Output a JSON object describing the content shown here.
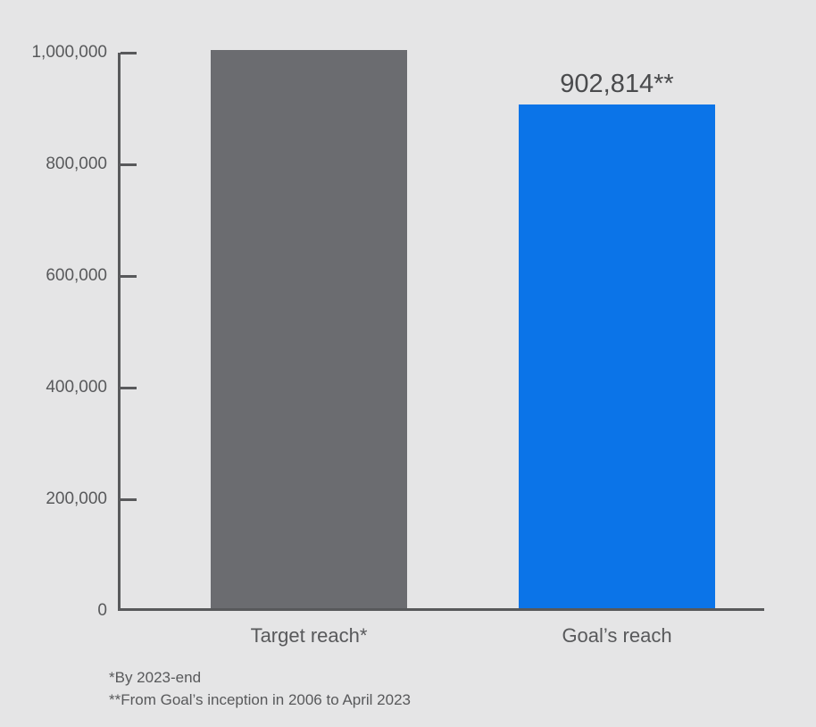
{
  "colors": {
    "background": "#e5e5e6",
    "axis": "#58595b",
    "text": "#58595b",
    "value_label_text": "#4a4b4d",
    "bar_gray": "#6b6c70",
    "bar_blue": "#0b74e8"
  },
  "chart_data": {
    "type": "bar",
    "title": "",
    "xlabel": "",
    "ylabel": "",
    "categories": [
      "Target reach*",
      "Goal’s reach"
    ],
    "values": [
      1000000,
      902814
    ],
    "series": [
      {
        "name": "Target reach*",
        "value": 1000000,
        "color_key": "bar_gray",
        "value_label": ""
      },
      {
        "name": "Goal’s reach",
        "value": 902814,
        "color_key": "bar_blue",
        "value_label": "902,814**"
      }
    ],
    "ylim": [
      0,
      1000000
    ],
    "yticks": [
      0,
      200000,
      400000,
      600000,
      800000,
      1000000
    ],
    "ytick_labels": [
      "0",
      "200,000",
      "400,000",
      "600,000",
      "800,000",
      "1,000,000"
    ],
    "grid": false,
    "legend": null
  },
  "footnotes": [
    "*By 2023-end",
    "**From Goal’s inception in 2006 to April 2023"
  ]
}
